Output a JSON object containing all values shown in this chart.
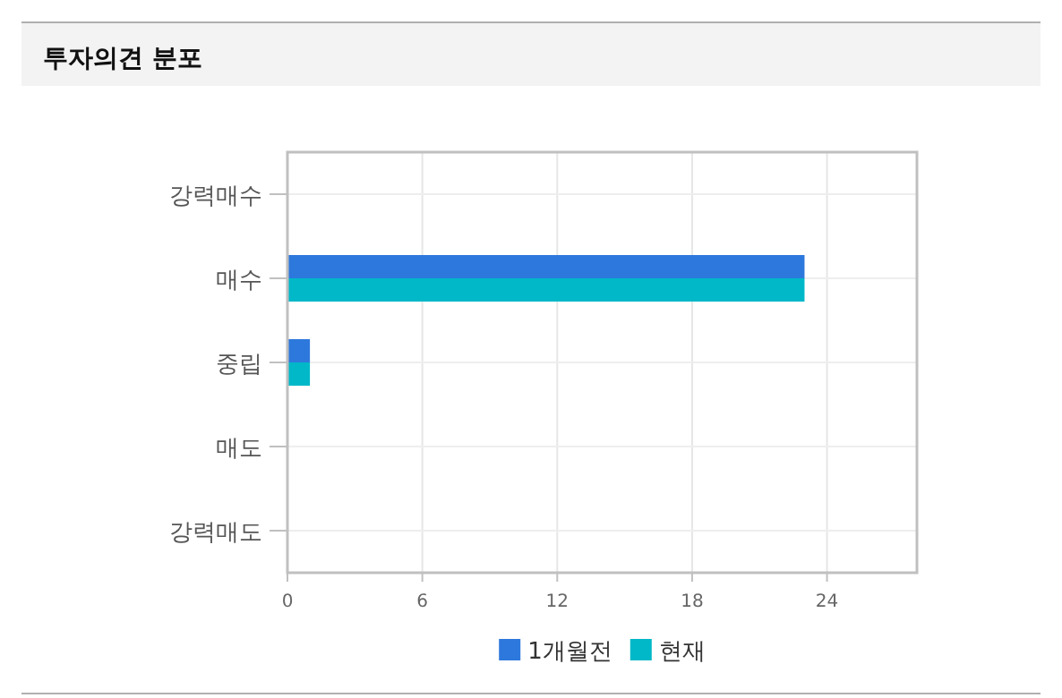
{
  "chart_data": {
    "type": "bar",
    "orientation": "horizontal",
    "title": "투자의견 분포",
    "categories": [
      "강력매수",
      "매수",
      "중립",
      "매도",
      "강력매도"
    ],
    "series": [
      {
        "name": "1개월전",
        "color": "#2d78dc",
        "values": [
          0,
          23,
          1,
          0,
          0
        ]
      },
      {
        "name": "현재",
        "color": "#00b8c8",
        "values": [
          0,
          23,
          1,
          0,
          0
        ]
      }
    ],
    "xlim": [
      0,
      28
    ],
    "xticks": [
      0,
      6,
      12,
      18,
      24
    ],
    "grid": true,
    "legend": "bottom"
  }
}
